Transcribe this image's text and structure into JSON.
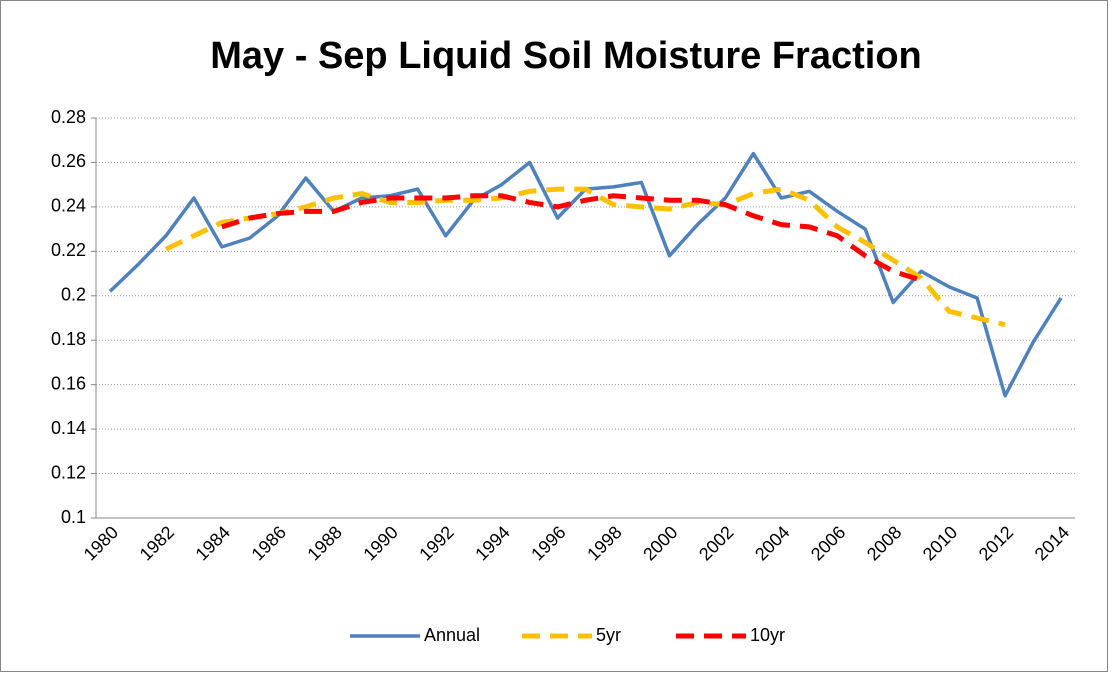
{
  "chart_data": {
    "type": "line",
    "title": "May - Sep Liquid Soil Moisture Fraction",
    "categories": [
      "1980",
      null,
      "1982",
      null,
      "1984",
      null,
      "1986",
      null,
      "1988",
      null,
      "1990",
      null,
      "1992",
      null,
      "1994",
      null,
      "1996",
      null,
      "1998",
      null,
      "2000",
      null,
      "2002",
      null,
      "2004",
      null,
      "2006",
      null,
      "2008",
      null,
      "2010",
      null,
      "2012",
      null,
      "2014"
    ],
    "series": [
      {
        "name": "Annual",
        "color": "#4f81bd",
        "values": [
          0.202,
          0.214,
          0.227,
          0.244,
          0.222,
          0.226,
          0.236,
          0.253,
          0.238,
          0.244,
          0.245,
          0.248,
          0.227,
          0.243,
          0.25,
          0.26,
          0.235,
          0.248,
          0.249,
          0.251,
          0.218,
          0.232,
          0.244,
          0.264,
          0.244,
          0.247,
          0.238,
          0.23,
          0.197,
          0.211,
          0.204,
          0.199,
          0.155,
          0.179,
          0.199
        ]
      },
      {
        "name": "5yr",
        "color": "#ffc000",
        "values": [
          null,
          null,
          0.221,
          0.227,
          0.233,
          0.235,
          0.237,
          0.24,
          0.244,
          0.246,
          0.242,
          0.242,
          0.243,
          0.243,
          0.244,
          0.247,
          0.248,
          0.248,
          0.241,
          0.24,
          0.239,
          0.242,
          0.241,
          0.246,
          0.248,
          0.243,
          0.231,
          0.224,
          0.216,
          0.208,
          0.193,
          0.19,
          0.187,
          null,
          null
        ]
      },
      {
        "name": "10yr",
        "color": "#ff0000",
        "values": [
          null,
          null,
          null,
          null,
          0.231,
          0.235,
          0.237,
          0.238,
          0.238,
          0.242,
          0.244,
          0.244,
          0.244,
          0.245,
          0.245,
          0.242,
          0.24,
          0.243,
          0.245,
          0.244,
          0.243,
          0.243,
          0.241,
          0.236,
          0.232,
          0.231,
          0.227,
          0.218,
          0.211,
          0.207,
          null,
          null,
          null,
          null,
          null
        ]
      }
    ],
    "ylim": [
      0.1,
      0.28
    ],
    "yticks": [
      0.1,
      0.12,
      0.14,
      0.16,
      0.18,
      0.2,
      0.22,
      0.24,
      0.26,
      0.28
    ],
    "grid": true,
    "legend": "bottom"
  }
}
